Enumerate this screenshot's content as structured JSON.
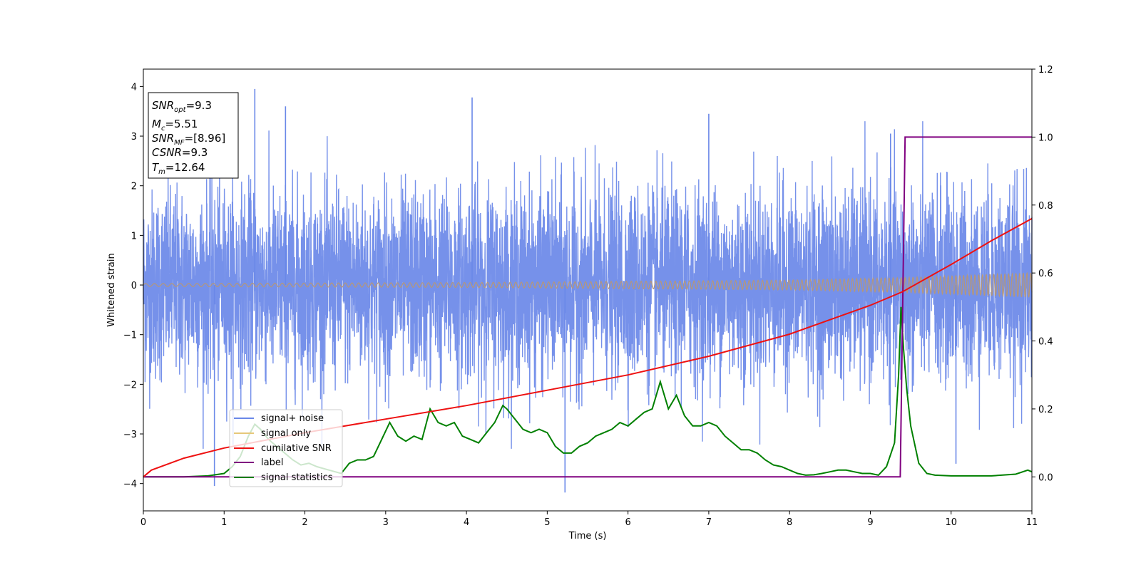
{
  "chart_data": {
    "type": "line",
    "xlabel": "Time (s)",
    "ylabel_left": "Whitened strain",
    "ylabel_right": "",
    "xlim": [
      0,
      11
    ],
    "ylim_left": [
      -4.55,
      4.35
    ],
    "ylim_right": [
      -0.1,
      1.2
    ],
    "x_ticks": [
      "0",
      "1",
      "2",
      "3",
      "4",
      "5",
      "6",
      "7",
      "8",
      "9",
      "10",
      "11"
    ],
    "y_ticks_left": [
      "4",
      "3",
      "2",
      "1",
      "0",
      "−1",
      "−2",
      "−3",
      "−4"
    ],
    "y_ticks_left_values": [
      4,
      3,
      2,
      1,
      0,
      -1,
      -2,
      -3,
      -4
    ],
    "y_ticks_right": [
      "1.2",
      "1.0",
      "0.8",
      "0.6",
      "0.4",
      "0.2",
      "0.0"
    ],
    "y_ticks_right_values": [
      1.2,
      1.0,
      0.8,
      0.6,
      0.4,
      0.2,
      0.0
    ],
    "grid": false,
    "legend_position": "bottom-left",
    "annotation": {
      "line1": "SNR_opt=9.3",
      "line2": "M_c=5.51",
      "line3": "SNR_MF=[8.96]",
      "line4": "CSNR=9.3",
      "line5": "T_m=12.64"
    },
    "colors": {
      "noise": "#6a88e8",
      "signal": "#e6c87a",
      "cumulative": "#ee1111",
      "label": "#800080",
      "stats": "#008000"
    },
    "series": [
      {
        "name": "signal+ noise",
        "axis": "left",
        "description_envelope": [
          [
            0,
            2.0
          ],
          [
            11,
            2.2
          ]
        ],
        "peaks": [
          [
            0.88,
            -4.05
          ],
          [
            1.38,
            3.95
          ],
          [
            1.76,
            3.6
          ],
          [
            4.07,
            3.78
          ],
          [
            5.22,
            -4.18
          ],
          [
            7.0,
            3.45
          ],
          [
            9.25,
            3.05
          ],
          [
            10.06,
            -3.6
          ]
        ]
      },
      {
        "name": "signal only",
        "axis": "left",
        "amplitude": [
          [
            0,
            0.03
          ],
          [
            4,
            0.05
          ],
          [
            8,
            0.1
          ],
          [
            9.4,
            0.15
          ],
          [
            11,
            0.25
          ]
        ]
      },
      {
        "name": "cumilative SNR",
        "axis": "right",
        "x": [
          0,
          0.1,
          0.5,
          1,
          2,
          3,
          4,
          5,
          6,
          7,
          8,
          9,
          9.4,
          10,
          10.5,
          11
        ],
        "y": [
          0.0,
          0.02,
          0.055,
          0.085,
          0.13,
          0.17,
          0.21,
          0.255,
          0.3,
          0.355,
          0.42,
          0.505,
          0.545,
          0.625,
          0.695,
          0.76
        ]
      },
      {
        "name": "label",
        "axis": "right",
        "x": [
          0,
          9.37,
          9.43,
          11
        ],
        "y": [
          0.0,
          0.0,
          1.0,
          1.0
        ]
      },
      {
        "name": "signal statistics",
        "axis": "right",
        "x": [
          0,
          0.5,
          0.8,
          1.0,
          1.1,
          1.2,
          1.3,
          1.38,
          1.45,
          1.55,
          1.65,
          1.75,
          1.85,
          1.95,
          2.05,
          2.15,
          2.3,
          2.45,
          2.55,
          2.65,
          2.75,
          2.85,
          2.95,
          3.05,
          3.15,
          3.25,
          3.35,
          3.45,
          3.55,
          3.65,
          3.75,
          3.85,
          3.95,
          4.05,
          4.15,
          4.25,
          4.35,
          4.45,
          4.5,
          4.6,
          4.7,
          4.8,
          4.9,
          5.0,
          5.1,
          5.2,
          5.3,
          5.4,
          5.5,
          5.6,
          5.7,
          5.8,
          5.9,
          6.0,
          6.1,
          6.2,
          6.3,
          6.4,
          6.5,
          6.55,
          6.6,
          6.7,
          6.8,
          6.9,
          7.0,
          7.1,
          7.2,
          7.3,
          7.4,
          7.5,
          7.6,
          7.7,
          7.8,
          7.9,
          8.0,
          8.1,
          8.2,
          8.3,
          8.4,
          8.5,
          8.6,
          8.7,
          8.8,
          8.9,
          9.0,
          9.1,
          9.2,
          9.3,
          9.35,
          9.38,
          9.41,
          9.45,
          9.5,
          9.6,
          9.7,
          9.8,
          10.0,
          10.5,
          10.8,
          10.95,
          11.0
        ],
        "y": [
          0.0,
          0.0,
          0.003,
          0.01,
          0.03,
          0.06,
          0.12,
          0.155,
          0.14,
          0.11,
          0.09,
          0.07,
          0.05,
          0.035,
          0.04,
          0.03,
          0.02,
          0.01,
          0.04,
          0.05,
          0.05,
          0.06,
          0.11,
          0.16,
          0.12,
          0.105,
          0.12,
          0.11,
          0.2,
          0.16,
          0.15,
          0.16,
          0.12,
          0.11,
          0.1,
          0.13,
          0.16,
          0.21,
          0.2,
          0.17,
          0.14,
          0.13,
          0.14,
          0.13,
          0.09,
          0.07,
          0.07,
          0.09,
          0.1,
          0.12,
          0.13,
          0.14,
          0.16,
          0.15,
          0.17,
          0.19,
          0.2,
          0.28,
          0.2,
          0.22,
          0.24,
          0.18,
          0.15,
          0.15,
          0.16,
          0.15,
          0.12,
          0.1,
          0.08,
          0.08,
          0.07,
          0.05,
          0.035,
          0.03,
          0.02,
          0.01,
          0.005,
          0.006,
          0.01,
          0.015,
          0.02,
          0.02,
          0.015,
          0.01,
          0.01,
          0.005,
          0.03,
          0.1,
          0.3,
          0.5,
          0.38,
          0.26,
          0.15,
          0.04,
          0.01,
          0.005,
          0.003,
          0.003,
          0.008,
          0.02,
          0.015
        ]
      }
    ]
  }
}
